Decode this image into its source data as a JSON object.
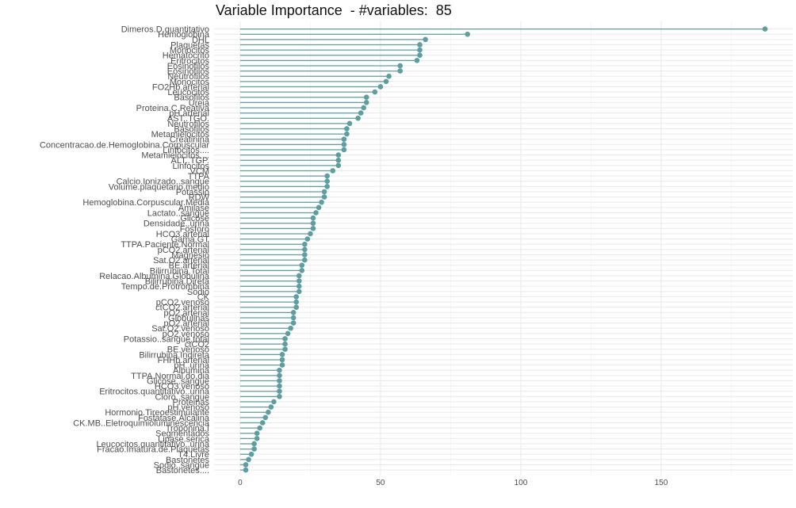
{
  "chart_data": {
    "type": "lollipop",
    "title": "Variable Importance  - #variables:  85",
    "xlabel": "",
    "ylabel": "",
    "xlim": [
      -7,
      197
    ],
    "x_ticks": [
      0,
      50,
      100,
      150
    ],
    "grid": true,
    "legend": "none",
    "color": "#5f9ea0",
    "categories": [
      "Dimeros.D.quantitativo",
      "Hemoglobina",
      "DHL",
      "Plaquetas",
      "Monocitos",
      "Hematocrito",
      "Eritrocitos",
      "Eosinofilos",
      "Eosinofilos",
      "Neutrofilos",
      "Monocitos",
      "FO2Hb.arterial",
      "Leucocitos",
      "Basofilos",
      "Ureia",
      "Proteina.C.Reativa",
      "pH.arterial",
      "AST..TGO.",
      "Neutrofilos",
      "Basofilos",
      "Metamielocitos",
      "Creatinina",
      "Concentracao.de.Hemoglobina.Corpuscular",
      "Linfocitos....",
      "Metamielocitos....",
      "ALT..TGP.",
      "Linfocitos",
      "VCM",
      "TTPA",
      "Calcio.Ionizado..sangue",
      "Volume.plaquetario.medio",
      "Potassio",
      "RDW",
      "Hemoglobina.Corpuscular.Media",
      "Amilase",
      "Lactato..sangue",
      "Glicose",
      "Densidade..urina",
      "Fosforo",
      "HCO3.arterial",
      "Gama.GT",
      "TTPA.Paciente.Normal",
      "pCO2.arterial",
      "Magnesio",
      "Sat.O2.arterial",
      "BE.arterial",
      "Bilirrubina.Total",
      "Relacao.Albumina.Globulina",
      "Bilirrubina.Direta",
      "Tempo.de.Protrombina",
      "Sodio",
      "CK",
      "pCO2.venoso",
      "ctCO2.arterial",
      "pO2.arterial",
      "Globulinas",
      "pO2.arterial",
      "Sat.O2.venoso",
      "pO2.venoso",
      "Potassio..sangue.total",
      "ctCO2",
      "BE.venoso",
      "Bilirrubina.Indireta",
      "FHHb.arterial",
      "pH..urina",
      "Albumina",
      "TTPA.Normal.do.dia",
      "Glicose..sangue",
      "HCO3.venoso",
      "Eritrocitos.quantitativo..urina",
      "Cloro..sangue",
      "Proteinas",
      "pH.venoso",
      "Hormonio.Tireoestimulante",
      "Fosfatase.Alcalina",
      "CK.MB..Eletroquimioluminescencia",
      "Troponina.I",
      "Segmentados",
      "Lipase.serica",
      "Leucocitos.quantitativo..urina",
      "Fracao.Imatura.de.Plaquetas",
      "T4.Livre",
      "Bastonetes",
      "Sodio..sangue",
      "Bastonetes...."
    ],
    "values": [
      187,
      81,
      66,
      64,
      64,
      64,
      63,
      57,
      57,
      53,
      52,
      50,
      48,
      45,
      45,
      44,
      43,
      42,
      39,
      38,
      38,
      37,
      37,
      37,
      35,
      35,
      35,
      33,
      31,
      31,
      31,
      30,
      30,
      29,
      28,
      27,
      26,
      26,
      26,
      25,
      24,
      23,
      23,
      23,
      23,
      22,
      22,
      21,
      21,
      21,
      21,
      20,
      20,
      20,
      19,
      19,
      19,
      18,
      17,
      16,
      16,
      16,
      15,
      15,
      15,
      14,
      14,
      14,
      14,
      14,
      14,
      12,
      11,
      10,
      9,
      8,
      7,
      6,
      6,
      5,
      5,
      4,
      3,
      2,
      2
    ]
  }
}
